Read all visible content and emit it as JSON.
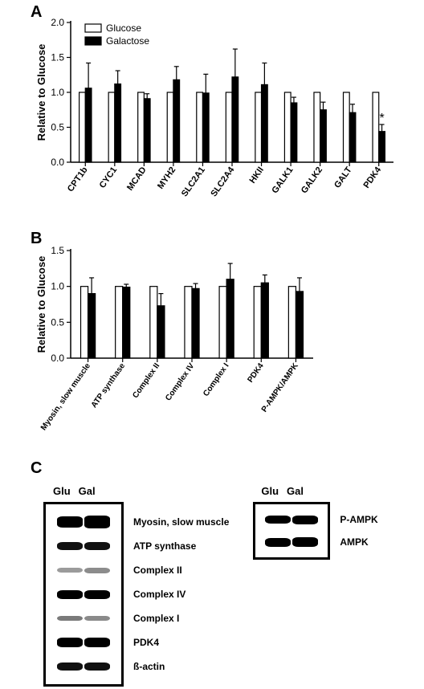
{
  "panelLabels": {
    "A": "A",
    "B": "B",
    "C": "C"
  },
  "legend": {
    "glu": "Glucose",
    "gal": "Galactose"
  },
  "ylabel": "Relative to Glucose",
  "sigMark": "*",
  "chartA": {
    "ylim": [
      0,
      2.0
    ],
    "yticks": [
      0.0,
      0.5,
      1.0,
      1.5,
      2.0
    ],
    "categories": [
      "CPT1b",
      "CYC1",
      "MCAD",
      "MYH2",
      "SLC2A1",
      "SLC2A4",
      "HKII",
      "GALK1",
      "GALK2",
      "GALT",
      "PDK4"
    ],
    "glu": [
      1.0,
      1.0,
      1.0,
      1.0,
      1.0,
      1.0,
      1.0,
      1.0,
      1.0,
      1.0,
      1.0
    ],
    "gal": [
      1.06,
      1.12,
      0.91,
      1.18,
      0.99,
      1.22,
      1.11,
      0.85,
      0.75,
      0.71,
      0.44
    ],
    "glu_err": [
      0,
      0,
      0,
      0,
      0,
      0,
      0,
      0,
      0,
      0,
      0
    ],
    "gal_err": [
      0.36,
      0.19,
      0.07,
      0.19,
      0.27,
      0.4,
      0.31,
      0.08,
      0.11,
      0.12,
      0.1
    ],
    "sig": [
      false,
      false,
      false,
      false,
      false,
      false,
      false,
      false,
      false,
      false,
      true
    ],
    "bar_w": 0.42,
    "colors": {
      "glu_fill": "#ffffff",
      "gal_fill": "#000000",
      "stroke": "#000000"
    }
  },
  "chartB": {
    "ylim": [
      0,
      1.5
    ],
    "yticks": [
      0.0,
      0.5,
      1.0,
      1.5
    ],
    "categories": [
      "Myosin, slow muscle",
      "ATP synthase",
      "Complex II",
      "Complex IV",
      "Complex I",
      "PDK4",
      "P-AMPK/AMPK"
    ],
    "glu": [
      1.0,
      1.0,
      1.0,
      1.0,
      1.0,
      1.0,
      1.0
    ],
    "gal": [
      0.9,
      0.99,
      0.73,
      0.97,
      1.1,
      1.05,
      0.93
    ],
    "glu_err": [
      0,
      0,
      0,
      0,
      0,
      0,
      0
    ],
    "gal_err": [
      0.22,
      0.04,
      0.17,
      0.07,
      0.22,
      0.11,
      0.19
    ],
    "bar_w": 0.42,
    "colors": {
      "glu_fill": "#ffffff",
      "gal_fill": "#000000",
      "stroke": "#000000"
    }
  },
  "panelC": {
    "laneHeads": [
      "Glu",
      "Gal"
    ],
    "leftRows": [
      {
        "label": "Myosin, slow muscle",
        "bands": [
          {
            "h": 14,
            "c": "#000"
          },
          {
            "h": 16,
            "c": "#000"
          }
        ]
      },
      {
        "label": "ATP synthase",
        "bands": [
          {
            "h": 10,
            "c": "#111"
          },
          {
            "h": 10,
            "c": "#111"
          }
        ]
      },
      {
        "label": "Complex II",
        "bands": [
          {
            "h": 6,
            "c": "#9b9b9b"
          },
          {
            "h": 7,
            "c": "#8c8c8c"
          }
        ]
      },
      {
        "label": "Complex IV",
        "bands": [
          {
            "h": 11,
            "c": "#000"
          },
          {
            "h": 11,
            "c": "#000"
          }
        ]
      },
      {
        "label": "Complex I",
        "bands": [
          {
            "h": 6,
            "c": "#7a7a7a"
          },
          {
            "h": 6,
            "c": "#8a8a8a"
          }
        ]
      },
      {
        "label": "PDK4",
        "bands": [
          {
            "h": 12,
            "c": "#000"
          },
          {
            "h": 12,
            "c": "#000"
          }
        ]
      },
      {
        "label": "ß-actin",
        "bands": [
          {
            "h": 10,
            "c": "#111"
          },
          {
            "h": 10,
            "c": "#111"
          }
        ]
      }
    ],
    "rightRows": [
      {
        "label": "P-AMPK",
        "bands": [
          {
            "h": 10,
            "c": "#000"
          },
          {
            "h": 11,
            "c": "#000"
          }
        ]
      },
      {
        "label": "AMPK",
        "bands": [
          {
            "h": 11,
            "c": "#000"
          },
          {
            "h": 12,
            "c": "#000"
          }
        ]
      }
    ]
  }
}
